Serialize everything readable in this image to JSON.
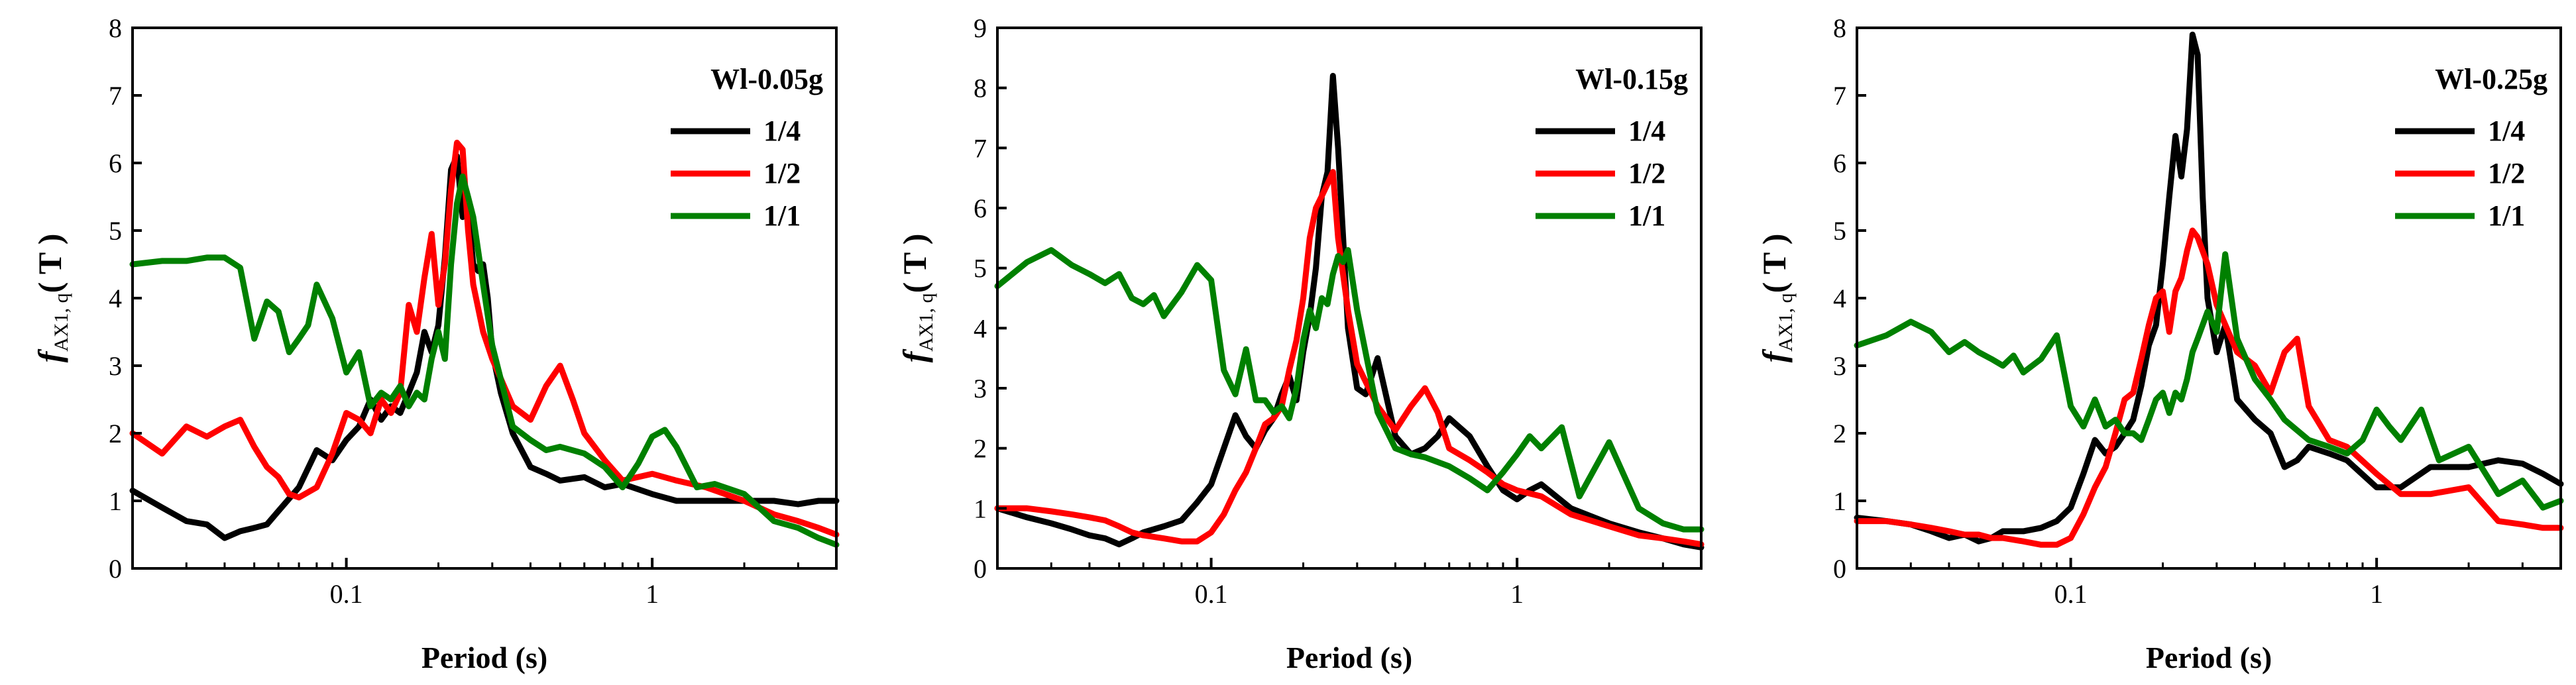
{
  "chart_data": [
    {
      "type": "line",
      "title": "Wl-0.05g",
      "xlabel": "Period (s)",
      "ylabel": {
        "main": "f",
        "sub": "AX1, q",
        "suffix": "( T )"
      },
      "xscale": "log",
      "xlim": [
        0.02,
        4.0
      ],
      "ylim": [
        0,
        8
      ],
      "xticks": [
        0.1,
        1
      ],
      "xtick_labels": [
        "0.1",
        "1"
      ],
      "yticks": [
        0,
        1,
        2,
        3,
        4,
        5,
        6,
        7,
        8
      ],
      "legend_position": "top-right",
      "series": [
        {
          "name": "1/4",
          "color": "#000000",
          "x": [
            0.02,
            0.025,
            0.03,
            0.035,
            0.04,
            0.045,
            0.05,
            0.055,
            0.06,
            0.07,
            0.08,
            0.09,
            0.1,
            0.11,
            0.12,
            0.13,
            0.14,
            0.15,
            0.16,
            0.17,
            0.18,
            0.19,
            0.2,
            0.21,
            0.22,
            0.23,
            0.24,
            0.25,
            0.26,
            0.27,
            0.28,
            0.29,
            0.3,
            0.32,
            0.35,
            0.4,
            0.45,
            0.5,
            0.6,
            0.7,
            0.8,
            1.0,
            1.2,
            1.5,
            2.0,
            2.5,
            3.0,
            3.5,
            4.0
          ],
          "y": [
            1.15,
            0.9,
            0.7,
            0.65,
            0.45,
            0.55,
            0.6,
            0.65,
            0.85,
            1.2,
            1.75,
            1.6,
            1.9,
            2.1,
            2.5,
            2.2,
            2.4,
            2.3,
            2.6,
            2.9,
            3.5,
            3.2,
            3.6,
            4.6,
            5.9,
            6.1,
            5.2,
            5.3,
            4.5,
            4.4,
            4.5,
            4.0,
            3.2,
            2.6,
            2.0,
            1.5,
            1.4,
            1.3,
            1.35,
            1.2,
            1.25,
            1.1,
            1.0,
            1.0,
            1.0,
            1.0,
            0.95,
            1.0,
            1.0
          ]
        },
        {
          "name": "1/2",
          "color": "#ff0000",
          "x": [
            0.02,
            0.025,
            0.03,
            0.035,
            0.04,
            0.045,
            0.05,
            0.055,
            0.06,
            0.065,
            0.07,
            0.08,
            0.09,
            0.1,
            0.11,
            0.12,
            0.13,
            0.14,
            0.15,
            0.16,
            0.17,
            0.18,
            0.19,
            0.2,
            0.21,
            0.22,
            0.23,
            0.24,
            0.25,
            0.26,
            0.28,
            0.3,
            0.35,
            0.4,
            0.45,
            0.5,
            0.55,
            0.6,
            0.7,
            0.8,
            1.0,
            1.2,
            1.5,
            2.0,
            2.5,
            3.0,
            3.5,
            4.0
          ],
          "y": [
            2.0,
            1.7,
            2.1,
            1.95,
            2.1,
            2.2,
            1.8,
            1.5,
            1.35,
            1.1,
            1.05,
            1.2,
            1.7,
            2.3,
            2.2,
            2.0,
            2.5,
            2.3,
            2.6,
            3.9,
            3.5,
            4.3,
            4.95,
            3.9,
            4.5,
            5.6,
            6.3,
            6.2,
            5.0,
            4.2,
            3.5,
            3.1,
            2.4,
            2.2,
            2.7,
            3.0,
            2.5,
            2.0,
            1.6,
            1.3,
            1.4,
            1.3,
            1.2,
            1.0,
            0.8,
            0.7,
            0.6,
            0.5
          ]
        },
        {
          "name": "1/1",
          "color": "#008000",
          "x": [
            0.02,
            0.025,
            0.03,
            0.035,
            0.04,
            0.045,
            0.05,
            0.055,
            0.06,
            0.065,
            0.07,
            0.075,
            0.08,
            0.09,
            0.1,
            0.11,
            0.12,
            0.13,
            0.14,
            0.15,
            0.16,
            0.17,
            0.18,
            0.19,
            0.2,
            0.21,
            0.22,
            0.23,
            0.24,
            0.25,
            0.26,
            0.28,
            0.3,
            0.35,
            0.4,
            0.45,
            0.5,
            0.6,
            0.7,
            0.8,
            0.9,
            1.0,
            1.1,
            1.2,
            1.4,
            1.6,
            2.0,
            2.5,
            3.0,
            3.5,
            4.0
          ],
          "y": [
            4.5,
            4.55,
            4.55,
            4.6,
            4.6,
            4.45,
            3.4,
            3.95,
            3.8,
            3.2,
            3.4,
            3.6,
            4.2,
            3.7,
            2.9,
            3.2,
            2.4,
            2.6,
            2.5,
            2.7,
            2.4,
            2.6,
            2.5,
            3.1,
            3.5,
            3.1,
            4.5,
            5.4,
            5.8,
            5.5,
            5.2,
            4.2,
            3.3,
            2.1,
            1.9,
            1.75,
            1.8,
            1.7,
            1.5,
            1.2,
            1.55,
            1.95,
            2.05,
            1.8,
            1.2,
            1.25,
            1.1,
            0.7,
            0.6,
            0.45,
            0.35
          ]
        }
      ]
    },
    {
      "type": "line",
      "title": "Wl-0.15g",
      "xlabel": "Period (s)",
      "ylabel": {
        "main": "f",
        "sub": "AX1, q",
        "suffix": "( T )"
      },
      "xscale": "log",
      "xlim": [
        0.02,
        4.0
      ],
      "ylim": [
        0,
        9
      ],
      "xticks": [
        0.1,
        1
      ],
      "xtick_labels": [
        "0.1",
        "1"
      ],
      "yticks": [
        0,
        1,
        2,
        3,
        4,
        5,
        6,
        7,
        8,
        9
      ],
      "legend_position": "top-right",
      "series": [
        {
          "name": "1/4",
          "color": "#000000",
          "x": [
            0.02,
            0.025,
            0.03,
            0.035,
            0.04,
            0.045,
            0.05,
            0.055,
            0.06,
            0.07,
            0.08,
            0.09,
            0.1,
            0.11,
            0.12,
            0.13,
            0.14,
            0.15,
            0.16,
            0.17,
            0.18,
            0.19,
            0.2,
            0.21,
            0.22,
            0.23,
            0.24,
            0.25,
            0.26,
            0.27,
            0.28,
            0.3,
            0.32,
            0.35,
            0.4,
            0.45,
            0.5,
            0.55,
            0.6,
            0.7,
            0.8,
            0.9,
            1.0,
            1.1,
            1.2,
            1.5,
            2.0,
            2.5,
            3.0,
            3.5,
            4.0
          ],
          "y": [
            1.0,
            0.85,
            0.75,
            0.65,
            0.55,
            0.5,
            0.4,
            0.5,
            0.6,
            0.7,
            0.8,
            1.1,
            1.4,
            2.0,
            2.55,
            2.2,
            2.0,
            2.3,
            2.5,
            2.9,
            3.2,
            2.8,
            3.6,
            4.2,
            5.0,
            6.2,
            6.6,
            8.2,
            7.0,
            5.5,
            4.0,
            3.0,
            2.9,
            3.5,
            2.2,
            1.9,
            2.0,
            2.2,
            2.5,
            2.2,
            1.7,
            1.3,
            1.15,
            1.3,
            1.4,
            1.0,
            0.75,
            0.6,
            0.5,
            0.4,
            0.35
          ]
        },
        {
          "name": "1/2",
          "color": "#ff0000",
          "x": [
            0.02,
            0.025,
            0.03,
            0.035,
            0.04,
            0.045,
            0.05,
            0.055,
            0.06,
            0.07,
            0.08,
            0.09,
            0.1,
            0.11,
            0.12,
            0.13,
            0.14,
            0.15,
            0.16,
            0.17,
            0.18,
            0.19,
            0.2,
            0.21,
            0.22,
            0.23,
            0.24,
            0.25,
            0.26,
            0.28,
            0.3,
            0.35,
            0.4,
            0.45,
            0.5,
            0.55,
            0.6,
            0.7,
            0.8,
            0.9,
            1.0,
            1.2,
            1.5,
            2.0,
            2.5,
            3.0,
            3.5,
            4.0
          ],
          "y": [
            1.0,
            1.0,
            0.95,
            0.9,
            0.85,
            0.8,
            0.7,
            0.6,
            0.55,
            0.5,
            0.45,
            0.45,
            0.6,
            0.9,
            1.3,
            1.6,
            2.0,
            2.4,
            2.5,
            2.7,
            3.3,
            3.8,
            4.5,
            5.5,
            6.0,
            6.2,
            6.4,
            6.6,
            5.5,
            4.3,
            3.4,
            2.7,
            2.3,
            2.7,
            3.0,
            2.6,
            2.0,
            1.8,
            1.6,
            1.4,
            1.3,
            1.2,
            0.9,
            0.7,
            0.55,
            0.5,
            0.45,
            0.4
          ]
        },
        {
          "name": "1/1",
          "color": "#008000",
          "x": [
            0.02,
            0.025,
            0.03,
            0.035,
            0.04,
            0.045,
            0.05,
            0.055,
            0.06,
            0.065,
            0.07,
            0.08,
            0.09,
            0.1,
            0.11,
            0.12,
            0.13,
            0.14,
            0.15,
            0.16,
            0.17,
            0.18,
            0.19,
            0.2,
            0.21,
            0.22,
            0.23,
            0.24,
            0.25,
            0.26,
            0.27,
            0.28,
            0.3,
            0.35,
            0.4,
            0.45,
            0.5,
            0.6,
            0.7,
            0.8,
            0.9,
            1.0,
            1.1,
            1.2,
            1.4,
            1.6,
            2.0,
            2.5,
            3.0,
            3.5,
            4.0
          ],
          "y": [
            4.7,
            5.1,
            5.3,
            5.05,
            4.9,
            4.75,
            4.9,
            4.5,
            4.4,
            4.55,
            4.2,
            4.6,
            5.05,
            4.8,
            3.3,
            2.9,
            3.65,
            2.8,
            2.8,
            2.6,
            2.7,
            2.5,
            3.0,
            3.8,
            4.3,
            4.0,
            4.5,
            4.4,
            4.9,
            5.2,
            5.1,
            5.3,
            4.3,
            2.6,
            2.0,
            1.9,
            1.85,
            1.7,
            1.5,
            1.3,
            1.6,
            1.9,
            2.2,
            2.0,
            2.35,
            1.2,
            2.1,
            1.0,
            0.75,
            0.65,
            0.65
          ]
        }
      ]
    },
    {
      "type": "line",
      "title": "Wl-0.25g",
      "xlabel": "Period (s)",
      "ylabel": {
        "main": "f",
        "sub": "AX1, q",
        "suffix": "( T )"
      },
      "xscale": "log",
      "xlim": [
        0.02,
        4.0
      ],
      "ylim": [
        0,
        8
      ],
      "xticks": [
        0.1,
        1
      ],
      "xtick_labels": [
        "0.1",
        "1"
      ],
      "yticks": [
        0,
        1,
        2,
        3,
        4,
        5,
        6,
        7,
        8
      ],
      "legend_position": "top-right",
      "series": [
        {
          "name": "1/4",
          "color": "#000000",
          "x": [
            0.02,
            0.025,
            0.03,
            0.035,
            0.04,
            0.045,
            0.05,
            0.055,
            0.06,
            0.07,
            0.08,
            0.09,
            0.1,
            0.11,
            0.12,
            0.13,
            0.14,
            0.15,
            0.16,
            0.17,
            0.18,
            0.19,
            0.2,
            0.21,
            0.22,
            0.23,
            0.24,
            0.25,
            0.26,
            0.27,
            0.28,
            0.3,
            0.32,
            0.35,
            0.4,
            0.45,
            0.5,
            0.55,
            0.6,
            0.7,
            0.8,
            1.0,
            1.2,
            1.5,
            2.0,
            2.5,
            3.0,
            3.5,
            4.0
          ],
          "y": [
            0.75,
            0.7,
            0.65,
            0.55,
            0.45,
            0.5,
            0.4,
            0.45,
            0.55,
            0.55,
            0.6,
            0.7,
            0.9,
            1.4,
            1.9,
            1.7,
            1.8,
            2.0,
            2.2,
            2.7,
            3.3,
            3.6,
            4.5,
            5.5,
            6.4,
            5.8,
            6.5,
            7.9,
            7.6,
            5.5,
            4.0,
            3.2,
            3.6,
            2.5,
            2.2,
            2.0,
            1.5,
            1.6,
            1.8,
            1.7,
            1.6,
            1.2,
            1.2,
            1.5,
            1.5,
            1.6,
            1.55,
            1.4,
            1.25
          ]
        },
        {
          "name": "1/2",
          "color": "#ff0000",
          "x": [
            0.02,
            0.025,
            0.03,
            0.035,
            0.04,
            0.045,
            0.05,
            0.055,
            0.06,
            0.07,
            0.08,
            0.09,
            0.1,
            0.11,
            0.12,
            0.13,
            0.14,
            0.15,
            0.16,
            0.17,
            0.18,
            0.19,
            0.2,
            0.21,
            0.22,
            0.23,
            0.24,
            0.25,
            0.26,
            0.28,
            0.3,
            0.35,
            0.4,
            0.45,
            0.5,
            0.55,
            0.6,
            0.7,
            0.8,
            1.0,
            1.2,
            1.5,
            2.0,
            2.5,
            3.0,
            3.5,
            4.0
          ],
          "y": [
            0.7,
            0.7,
            0.65,
            0.6,
            0.55,
            0.5,
            0.5,
            0.45,
            0.45,
            0.4,
            0.35,
            0.35,
            0.45,
            0.8,
            1.2,
            1.5,
            2.0,
            2.5,
            2.6,
            3.1,
            3.6,
            4.0,
            4.1,
            3.5,
            4.1,
            4.3,
            4.7,
            5.0,
            4.9,
            4.5,
            3.9,
            3.2,
            3.0,
            2.6,
            3.2,
            3.4,
            2.4,
            1.9,
            1.8,
            1.4,
            1.1,
            1.1,
            1.2,
            0.7,
            0.65,
            0.6,
            0.6
          ]
        },
        {
          "name": "1/1",
          "color": "#008000",
          "x": [
            0.02,
            0.025,
            0.03,
            0.035,
            0.04,
            0.045,
            0.05,
            0.055,
            0.06,
            0.065,
            0.07,
            0.08,
            0.09,
            0.1,
            0.11,
            0.12,
            0.13,
            0.14,
            0.15,
            0.16,
            0.17,
            0.18,
            0.19,
            0.2,
            0.21,
            0.22,
            0.23,
            0.24,
            0.25,
            0.26,
            0.28,
            0.3,
            0.32,
            0.35,
            0.4,
            0.45,
            0.5,
            0.6,
            0.7,
            0.8,
            0.9,
            1.0,
            1.1,
            1.2,
            1.4,
            1.6,
            2.0,
            2.5,
            3.0,
            3.5,
            4.0
          ],
          "y": [
            3.3,
            3.45,
            3.65,
            3.5,
            3.2,
            3.35,
            3.2,
            3.1,
            3.0,
            3.15,
            2.9,
            3.1,
            3.45,
            2.4,
            2.1,
            2.5,
            2.1,
            2.2,
            2.0,
            2.0,
            1.9,
            2.2,
            2.5,
            2.6,
            2.3,
            2.6,
            2.5,
            2.8,
            3.2,
            3.4,
            3.8,
            3.5,
            4.65,
            3.4,
            2.8,
            2.5,
            2.2,
            1.9,
            1.8,
            1.7,
            1.9,
            2.35,
            2.1,
            1.9,
            2.35,
            1.6,
            1.8,
            1.1,
            1.3,
            0.9,
            1.0
          ]
        }
      ]
    }
  ]
}
